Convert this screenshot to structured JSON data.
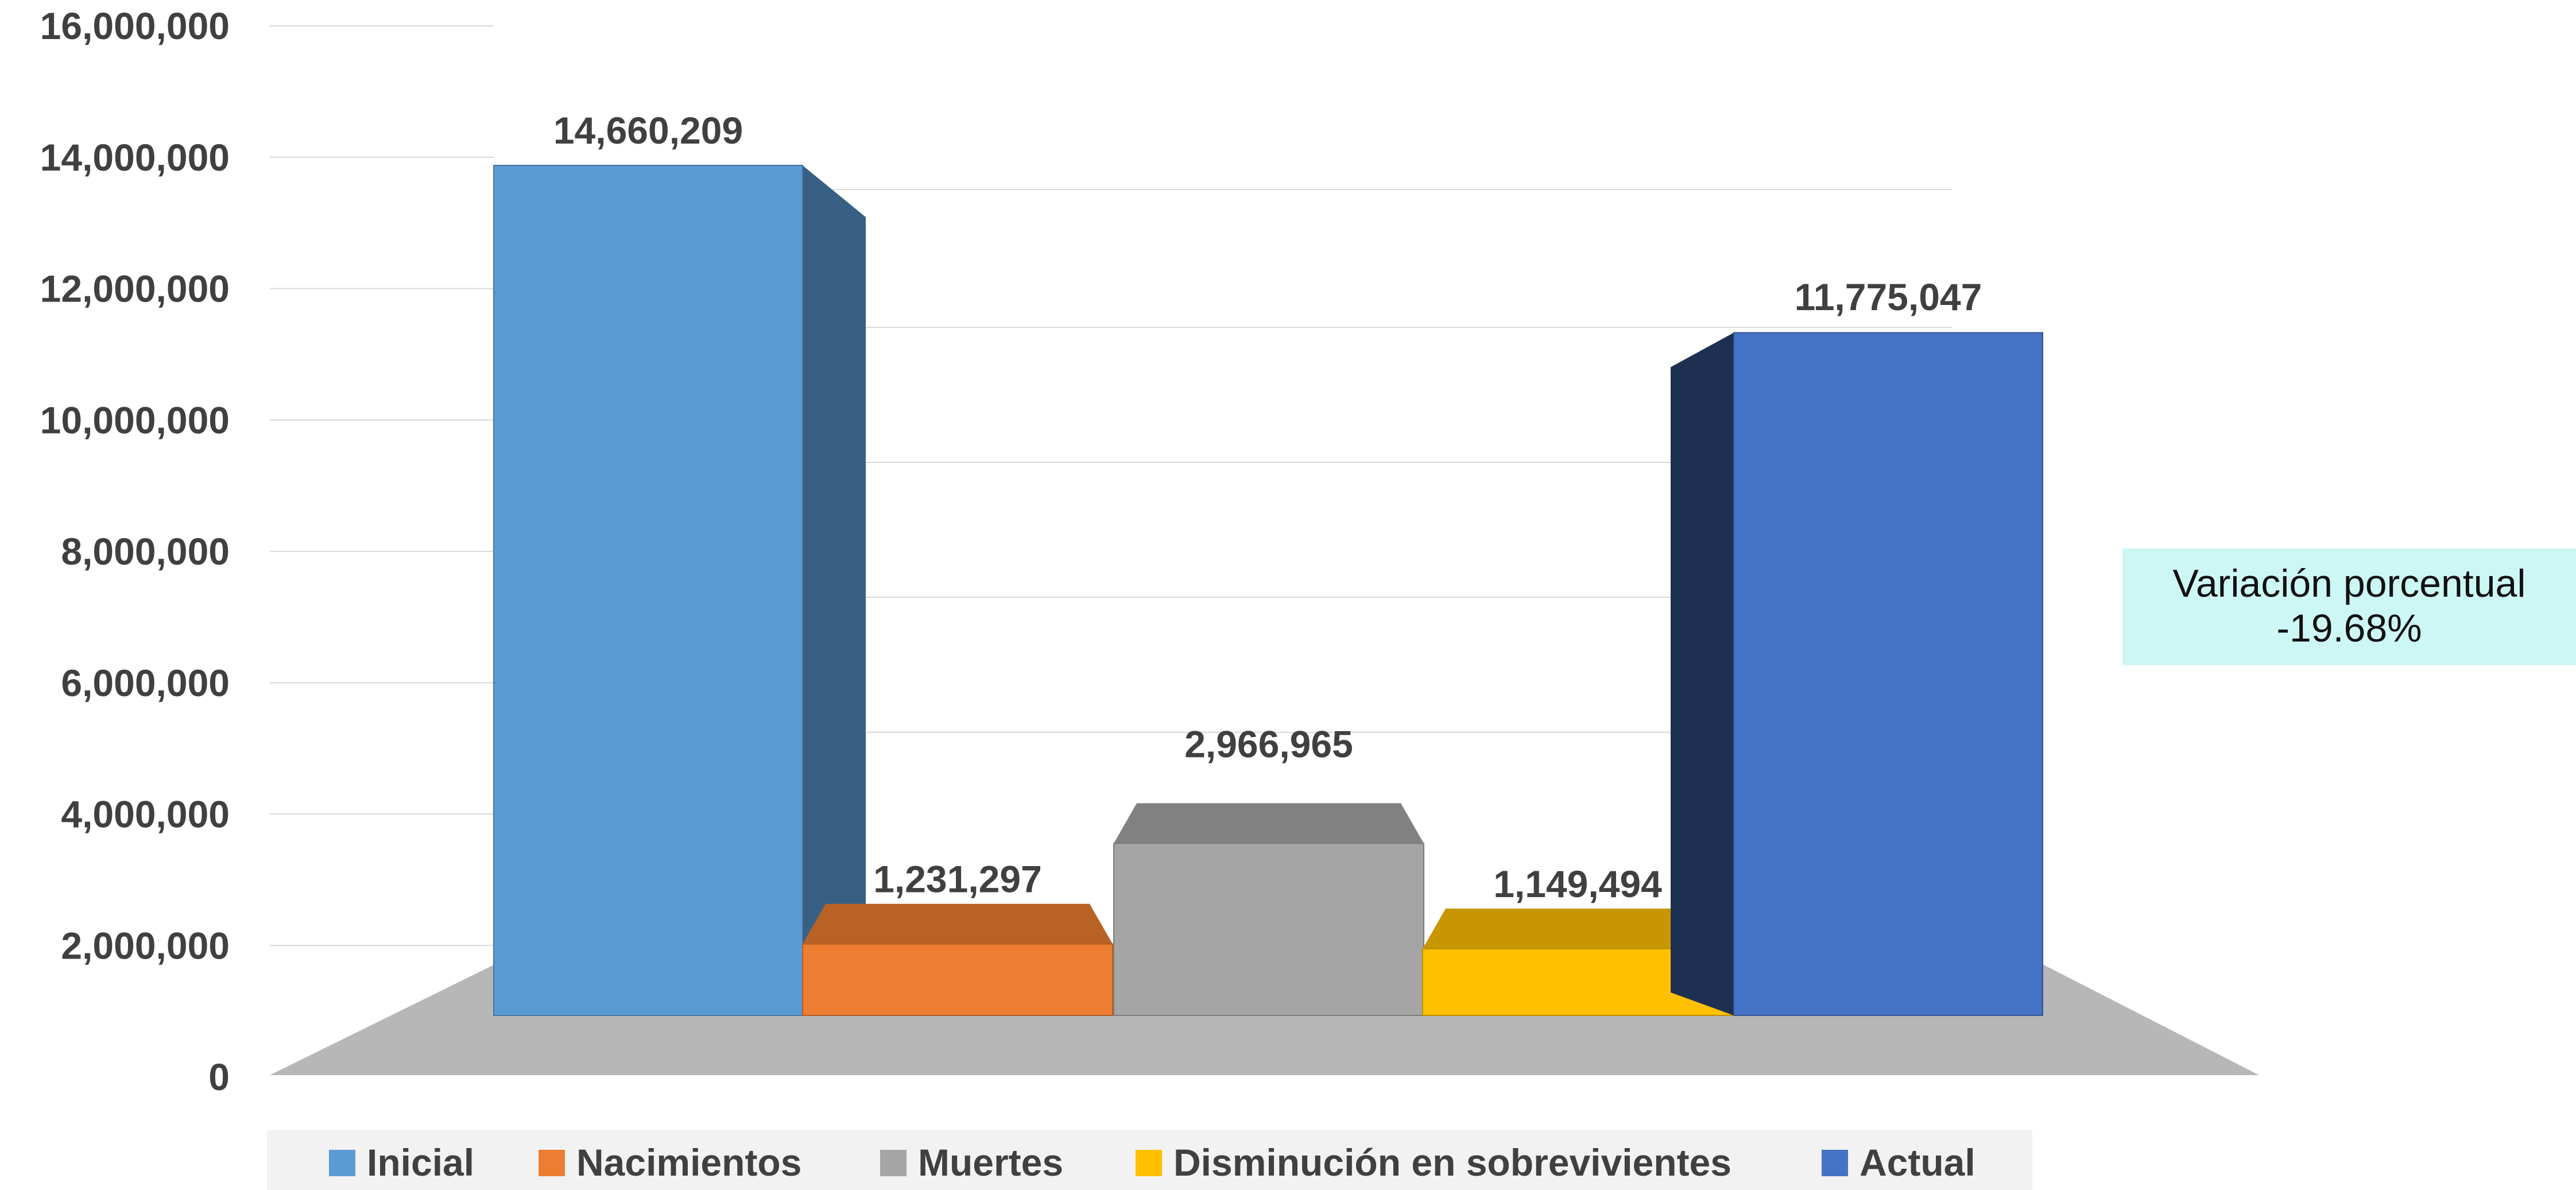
{
  "chart_data": {
    "type": "bar",
    "subtype": "3d-waterfall",
    "categories": [
      "Inicial",
      "Nacimientos",
      "Muertes",
      "Disminución en sobrevivientes",
      "Actual"
    ],
    "series": [
      {
        "name": "Inicial",
        "value": 14660209,
        "base": 0,
        "label": "14,660,209",
        "color": "#5b9bd5"
      },
      {
        "name": "Nacimientos",
        "value": 1231297,
        "base": 0,
        "label": "1,231,297",
        "color": "#ed7d31"
      },
      {
        "name": "Muertes",
        "value": 2966965,
        "base": 0,
        "label": "2,966,965",
        "color": "#a5a5a5"
      },
      {
        "name": "Disminución en sobrevivientes",
        "value": 1149494,
        "base": 0,
        "label": "1,149,494",
        "color": "#ffc000"
      },
      {
        "name": "Actual",
        "value": 11775047,
        "base": 0,
        "label": "11,775,047",
        "color": "#4472c4"
      }
    ],
    "ylim": [
      0,
      16000000
    ],
    "yticks": [
      "0",
      "2,000,000",
      "4,000,000",
      "6,000,000",
      "8,000,000",
      "10,000,000",
      "12,000,000",
      "14,000,000",
      "16,000,000"
    ],
    "grid": true,
    "legend_position": "bottom",
    "annotation": {
      "line1": "Variación porcentual",
      "line2": "-19.68%"
    }
  }
}
